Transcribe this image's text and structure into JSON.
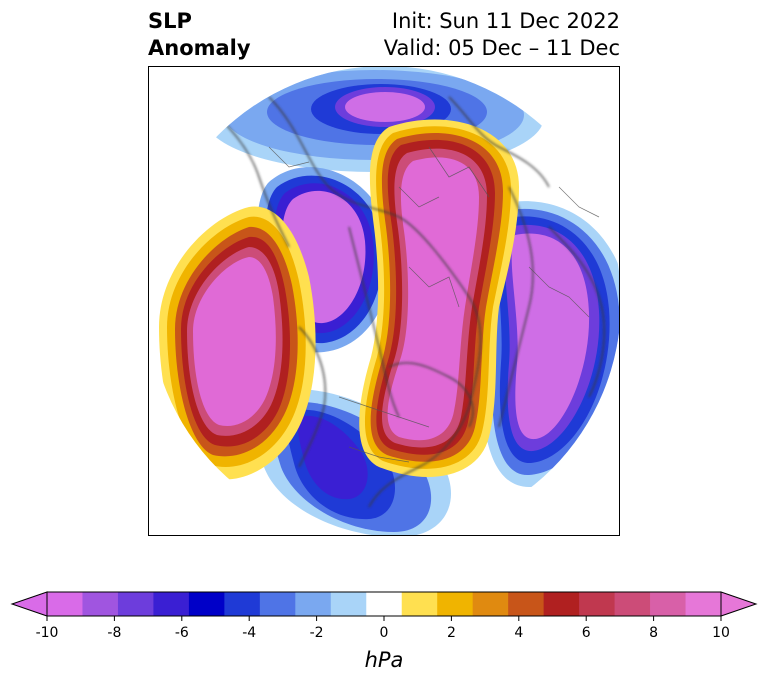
{
  "title": {
    "line1": "SLP",
    "line2": "Anomaly",
    "init": "Init: Sun 11 Dec 2022",
    "valid": "Valid: 05 Dec – 11 Dec"
  },
  "colorbar": {
    "unit": "hPa",
    "tick_labels": [
      "-10",
      "-8",
      "-6",
      "-4",
      "-2",
      "0",
      "2",
      "4",
      "6",
      "8",
      "10"
    ],
    "levels": [
      -10,
      -9,
      -8,
      -7,
      -6,
      -5,
      -4,
      -3,
      -2,
      -1,
      1,
      2,
      3,
      4,
      5,
      6,
      7,
      8,
      9,
      10
    ],
    "colors": [
      "#d96be8",
      "#a055e0",
      "#6d3ddc",
      "#3a1fd3",
      "#0000c8",
      "#1f3ad6",
      "#4f74e6",
      "#7aa8f0",
      "#a9d4f8",
      "#ffffff",
      "#ffe050",
      "#f0b400",
      "#e08a10",
      "#c85519",
      "#b02020",
      "#c0384f",
      "#cc4c78",
      "#d860a8",
      "#e677d8"
    ],
    "under_color": "#d96be8",
    "over_color": "#e677d8"
  },
  "map": {
    "projection": "north-polar-stereographic",
    "colors": {
      "positive_core": "#e06ad6",
      "negative_core": "#cf6ee6",
      "coast": "#3a3a3a"
    }
  }
}
